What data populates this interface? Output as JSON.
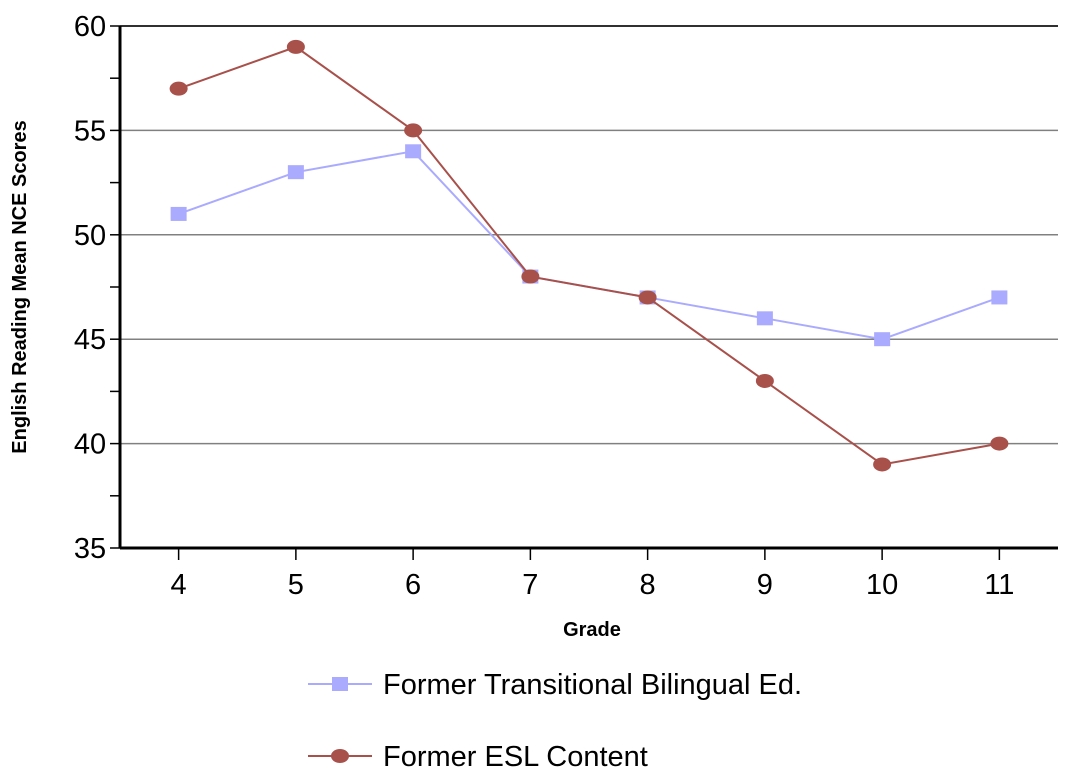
{
  "chart_data": {
    "type": "line",
    "title": "",
    "xlabel": "Grade",
    "ylabel": "English Reading Mean NCE Scores",
    "categories": [
      "4",
      "5",
      "6",
      "7",
      "8",
      "9",
      "10",
      "11"
    ],
    "ylim": [
      35,
      60
    ],
    "yticks": [
      "35",
      "40",
      "45",
      "50",
      "55",
      "60"
    ],
    "grid": true,
    "legend_position": "bottom",
    "series": [
      {
        "name": "Former Transitional Bilingual Ed.",
        "values": [
          51,
          53,
          54,
          48,
          47,
          46,
          45,
          47
        ],
        "color": "#aaaaff",
        "marker": "square"
      },
      {
        "name": "Former ESL Content",
        "values": [
          57,
          59,
          55,
          48,
          47,
          43,
          39,
          40
        ],
        "color": "#a8504a",
        "marker": "circle"
      }
    ]
  }
}
